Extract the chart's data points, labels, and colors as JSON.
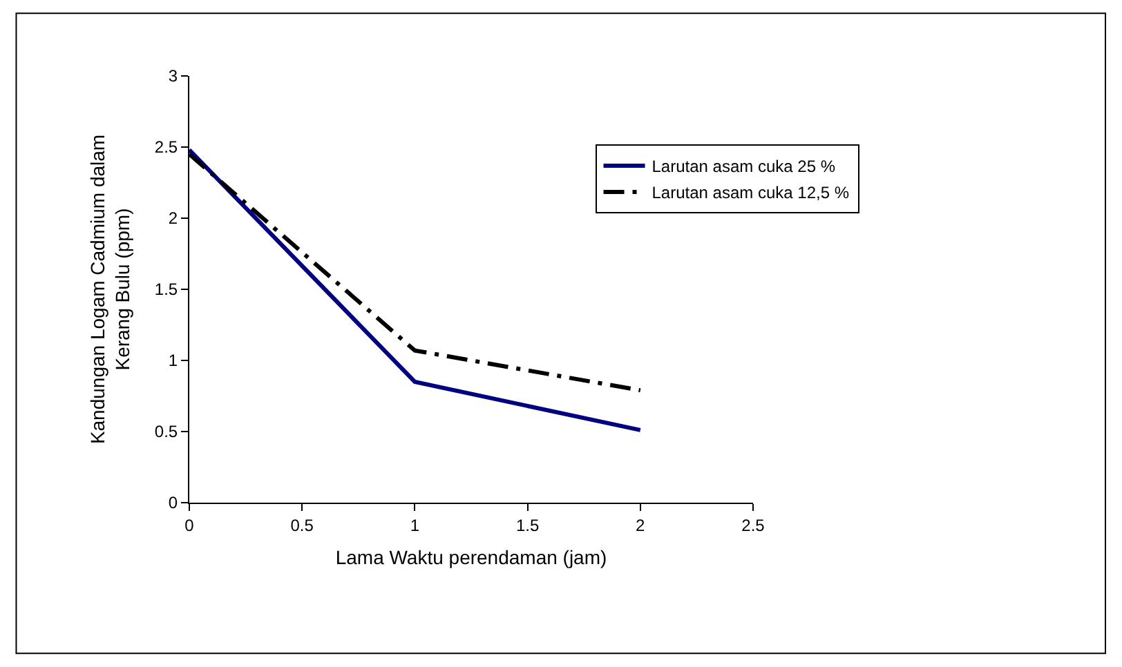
{
  "chart_data": {
    "type": "line",
    "xlabel": "Lama Waktu perendaman (jam)",
    "ylabel": "Kandungan Logam Cadmium dalam Kerang Bulu (ppm)",
    "x": [
      0,
      1,
      2
    ],
    "series": [
      {
        "name": "Larutan asam cuka 25 %",
        "color": "#000080",
        "values": [
          2.48,
          0.85,
          0.51
        ],
        "line_style": "solid"
      },
      {
        "name": "Larutan asam cuka 12,5 %",
        "color": "#000000",
        "values": [
          2.45,
          1.07,
          0.79
        ],
        "line_style": "dashed"
      }
    ],
    "xlim": [
      0,
      2.5
    ],
    "xticks": [
      0,
      0.5,
      1,
      1.5,
      2,
      2.5
    ],
    "ylim": [
      0,
      3
    ],
    "yticks": [
      0,
      0.5,
      1,
      1.5,
      2,
      2.5,
      3
    ],
    "grid": false,
    "legend": "right",
    "marker": "none"
  }
}
